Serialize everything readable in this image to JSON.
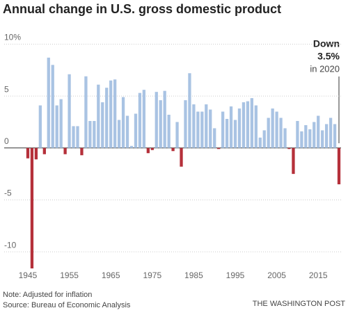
{
  "chart_data": {
    "type": "bar",
    "title": "Annual change in U.S. gross domestic product",
    "x": [
      1945,
      1946,
      1947,
      1948,
      1949,
      1950,
      1951,
      1952,
      1953,
      1954,
      1955,
      1956,
      1957,
      1958,
      1959,
      1960,
      1961,
      1962,
      1963,
      1964,
      1965,
      1966,
      1967,
      1968,
      1969,
      1970,
      1971,
      1972,
      1973,
      1974,
      1975,
      1976,
      1977,
      1978,
      1979,
      1980,
      1981,
      1982,
      1983,
      1984,
      1985,
      1986,
      1987,
      1988,
      1989,
      1990,
      1991,
      1992,
      1993,
      1994,
      1995,
      1996,
      1997,
      1998,
      1999,
      2000,
      2001,
      2002,
      2003,
      2004,
      2005,
      2006,
      2007,
      2008,
      2009,
      2010,
      2011,
      2012,
      2013,
      2014,
      2015,
      2016,
      2017,
      2018,
      2019,
      2020
    ],
    "values": [
      -1.0,
      -11.6,
      -1.1,
      4.1,
      -0.6,
      8.7,
      8.0,
      4.1,
      4.7,
      -0.6,
      7.1,
      2.1,
      2.1,
      -0.7,
      6.9,
      2.6,
      2.6,
      6.1,
      4.4,
      5.8,
      6.5,
      6.6,
      2.7,
      4.9,
      3.1,
      0.2,
      3.3,
      5.3,
      5.6,
      -0.5,
      -0.2,
      5.4,
      4.6,
      5.5,
      3.2,
      -0.3,
      2.5,
      -1.8,
      4.6,
      7.2,
      4.2,
      3.5,
      3.5,
      4.2,
      3.7,
      1.9,
      -0.1,
      3.5,
      2.8,
      4.0,
      2.7,
      3.8,
      4.4,
      4.5,
      4.8,
      4.1,
      1.0,
      1.7,
      2.9,
      3.8,
      3.5,
      2.9,
      1.9,
      -0.1,
      -2.5,
      2.6,
      1.6,
      2.2,
      1.8,
      2.5,
      3.1,
      1.7,
      2.3,
      2.9,
      2.3,
      -3.5
    ],
    "positive_color": "#a9c3e3",
    "negative_color": "#b5303a",
    "xlim": [
      1944.5,
      2020.5
    ],
    "xticks": [
      1945,
      1955,
      1965,
      1975,
      1985,
      1995,
      2005,
      2015
    ],
    "ylim": [
      -11.8,
      10.5
    ],
    "yticks": [
      {
        "value": 10,
        "label": "10%"
      },
      5,
      0,
      -5,
      -10
    ],
    "grid": true,
    "annotation": {
      "line1": "Down",
      "line2": "3.5%",
      "line3": "in 2020"
    },
    "note": "Note: Adjusted for inflation",
    "source": "Source: Bureau of Economic Analysis",
    "credit": "THE WASHINGTON POST"
  }
}
